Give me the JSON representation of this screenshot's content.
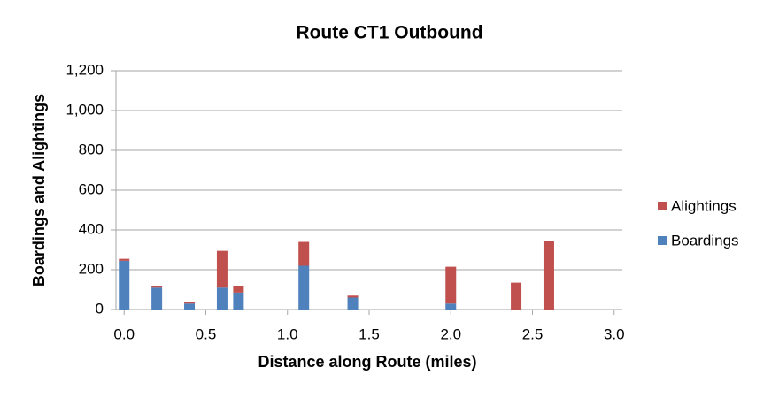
{
  "chart_data": {
    "type": "stacked_bar",
    "title": "Route CT1 Outbound",
    "x_label": "Distance along Route (miles)",
    "y_label": "Boardings and Alightings",
    "x": [
      0.0,
      0.2,
      0.4,
      0.6,
      0.7,
      1.1,
      1.4,
      2.0,
      2.4,
      2.6
    ],
    "series": [
      {
        "name": "Boardings",
        "color": "#4f81bd",
        "values": [
          245,
          110,
          30,
          110,
          85,
          220,
          60,
          30,
          0,
          0
        ]
      },
      {
        "name": "Alightings",
        "color": "#c0504d",
        "values": [
          10,
          10,
          10,
          185,
          35,
          120,
          10,
          185,
          135,
          345
        ]
      }
    ],
    "xlim": [
      -0.05,
      3.05
    ],
    "xticks": [
      {
        "value": 0,
        "label": "0.0"
      },
      0.5,
      {
        "value": 1,
        "label": "1.0"
      },
      1.5,
      {
        "value": 2,
        "label": "2.0"
      },
      2.5,
      {
        "value": 3,
        "label": "3.0"
      }
    ],
    "ylim": [
      0,
      1200
    ],
    "yticks": [
      0,
      200,
      400,
      600,
      800,
      {
        "value": 1000,
        "label": "1,000"
      },
      {
        "value": 1200,
        "label": "1,200"
      }
    ],
    "grid": true,
    "legend": "right"
  }
}
